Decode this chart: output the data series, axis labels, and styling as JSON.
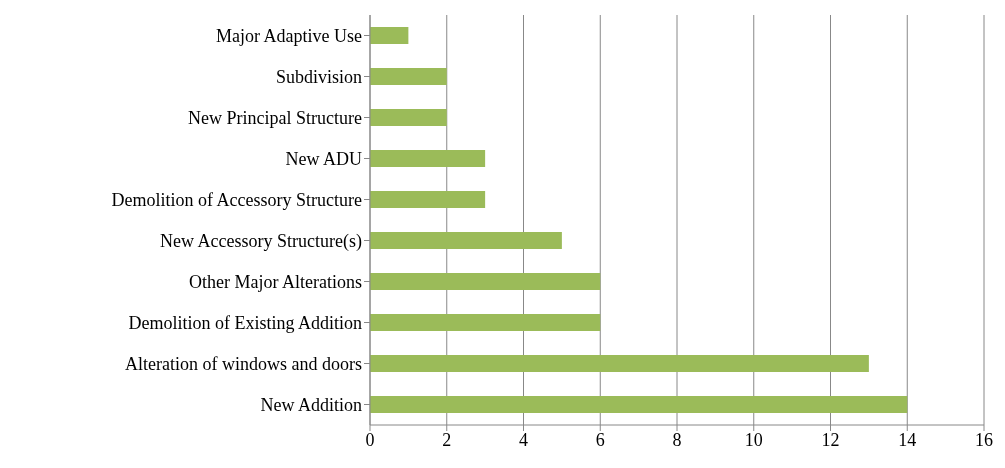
{
  "chart_data": {
    "type": "bar",
    "orientation": "horizontal",
    "categories": [
      "Major Adaptive Use",
      "Subdivision",
      "New Principal Structure",
      "New ADU",
      "Demolition of Accessory Structure",
      "New Accessory Structure(s)",
      "Other Major Alterations",
      "Demolition of Existing Addition",
      "Alteration of windows and doors",
      "New Addition"
    ],
    "values": [
      1,
      2,
      2,
      3,
      3,
      5,
      6,
      6,
      13,
      14
    ],
    "color": "#9bbb59",
    "xlim": [
      0,
      16
    ],
    "xticks": [
      0,
      2,
      4,
      6,
      8,
      10,
      12,
      14,
      16
    ],
    "grid": "x",
    "legend": false
  }
}
